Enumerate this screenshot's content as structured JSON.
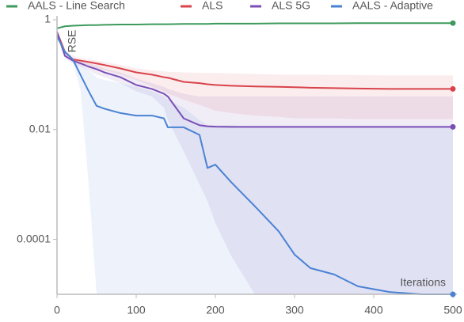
{
  "chart_data": {
    "type": "line",
    "y_label": "RSE",
    "x_label": "Iterations",
    "log_y": true,
    "legend": "top",
    "xlim": [
      0,
      500
    ],
    "xticks": [
      0,
      100,
      200,
      300,
      400,
      500
    ],
    "ylim": [
      1e-05,
      1
    ],
    "yticks": [
      1,
      0.01,
      0.0001
    ],
    "x": [
      0,
      10,
      20,
      30,
      40,
      50,
      60,
      80,
      100,
      120,
      135,
      140,
      160,
      180,
      190,
      200,
      220,
      250,
      280,
      300,
      320,
      350,
      380,
      420,
      460,
      500
    ],
    "series": [
      {
        "name": "AALS - Line Search",
        "color": "#3d9a5c",
        "values": [
          0.7,
          0.76,
          0.78,
          0.79,
          0.8,
          0.8,
          0.81,
          0.82,
          0.82,
          0.83,
          0.83,
          0.83,
          0.84,
          0.84,
          0.84,
          0.85,
          0.85,
          0.85,
          0.86,
          0.86,
          0.86,
          0.86,
          0.87,
          0.87,
          0.87,
          0.87
        ]
      },
      {
        "name": "ALS",
        "color": "#d9434b",
        "values": [
          0.6,
          0.26,
          0.19,
          0.18,
          0.17,
          0.16,
          0.15,
          0.13,
          0.11,
          0.1,
          0.09,
          0.088,
          0.074,
          0.07,
          0.067,
          0.065,
          0.063,
          0.061,
          0.06,
          0.059,
          0.058,
          0.057,
          0.056,
          0.055,
          0.055,
          0.055
        ],
        "band": {
          "lower": [
            0.6,
            0.24,
            0.17,
            0.15,
            0.14,
            0.13,
            0.12,
            0.1,
            0.08,
            0.06,
            0.05,
            0.045,
            0.035,
            0.028,
            0.025,
            0.022,
            0.02,
            0.018,
            0.017,
            0.016,
            0.016,
            0.016,
            0.0155,
            0.0155,
            0.0155,
            0.0155
          ],
          "upper": [
            0.6,
            0.28,
            0.22,
            0.2,
            0.19,
            0.18,
            0.17,
            0.15,
            0.13,
            0.12,
            0.115,
            0.113,
            0.11,
            0.108,
            0.107,
            0.107,
            0.105,
            0.103,
            0.1,
            0.1,
            0.1,
            0.099,
            0.098,
            0.097,
            0.097,
            0.097
          ]
        }
      },
      {
        "name": "ALS 5G",
        "color": "#7a4fb5",
        "values": [
          0.6,
          0.22,
          0.18,
          0.16,
          0.14,
          0.126,
          0.11,
          0.09,
          0.065,
          0.055,
          0.045,
          0.04,
          0.016,
          0.012,
          0.0115,
          0.0113,
          0.0112,
          0.0112,
          0.0112,
          0.0112,
          0.0112,
          0.0112,
          0.0112,
          0.0112,
          0.0112,
          0.0112
        ],
        "band": {
          "lower": [
            0.6,
            0.2,
            0.16,
            0.14,
            0.12,
            0.1,
            0.09,
            0.07,
            0.05,
            0.04,
            0.025,
            0.015,
            0.004,
            0.001,
            0.0005,
            0.0002,
            5e-05,
            1e-05,
            1e-05,
            1e-05,
            1e-05,
            1e-05,
            1e-05,
            1e-05,
            1e-05,
            1e-05
          ],
          "upper": [
            0.6,
            0.24,
            0.2,
            0.18,
            0.16,
            0.15,
            0.13,
            0.11,
            0.085,
            0.07,
            0.06,
            0.055,
            0.045,
            0.04,
            0.04,
            0.04,
            0.04,
            0.04,
            0.04,
            0.04,
            0.04,
            0.04,
            0.04,
            0.04,
            0.04,
            0.04
          ]
        }
      },
      {
        "name": "AALS - Adaptive",
        "color": "#4a82d3",
        "values": [
          0.5,
          0.26,
          0.19,
          0.097,
          0.05,
          0.027,
          0.024,
          0.02,
          0.018,
          0.018,
          0.016,
          0.011,
          0.011,
          0.008,
          0.002,
          0.0023,
          0.0011,
          0.0004,
          0.00014,
          5.3e-05,
          3e-05,
          2.3e-05,
          1.4e-05,
          1.1e-05,
          1e-05,
          1e-05
        ],
        "band": {
          "lower": [
            0.5,
            0.24,
            0.17,
            0.05,
            0.001,
            1e-05,
            1e-05,
            1e-05,
            1e-05,
            1e-05,
            1e-05,
            1e-05,
            1e-05,
            1e-05,
            1e-05,
            1e-05,
            1e-05,
            1e-05,
            1e-05,
            1e-05,
            1e-05,
            1e-05,
            1e-05,
            1e-05,
            1e-05,
            1e-05
          ],
          "upper": [
            0.5,
            0.28,
            0.2,
            0.15,
            0.12,
            0.09,
            0.08,
            0.07,
            0.06,
            0.05,
            0.04,
            0.035,
            0.025,
            0.015,
            0.012,
            0.012,
            0.012,
            0.011,
            0.011,
            0.011,
            0.011,
            0.011,
            0.011,
            0.011,
            0.011,
            0.011
          ]
        }
      }
    ]
  }
}
